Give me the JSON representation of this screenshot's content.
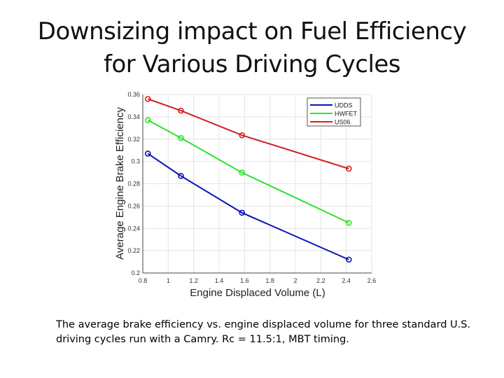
{
  "slide": {
    "title_line1": "Downsizing impact on Fuel Efficiency",
    "title_line2": "for Various Driving Cycles",
    "caption": "The average brake efficiency vs. engine displaced volume for three standard U.S. driving cycles run with a Camry. Rc = 11.5:1, MBT timing."
  },
  "chart_data": {
    "type": "line",
    "title": "",
    "xlabel": "Engine Displaced Volume (L)",
    "ylabel": "Average Engine Brake Efficiency",
    "xlim": [
      0.8,
      2.6
    ],
    "ylim": [
      0.2,
      0.36
    ],
    "xticks": [
      "0.8",
      "1",
      "1.2",
      "1.4",
      "1.6",
      "1.8",
      "2",
      "2.2",
      "2.4",
      "2.6"
    ],
    "yticks": [
      "0.2",
      "0.22",
      "0.24",
      "0.26",
      "0.28",
      "0.3",
      "0.32",
      "0.34",
      "0.36"
    ],
    "grid": true,
    "legend_position": "top-right",
    "x": [
      0.84,
      1.1,
      1.58,
      2.42
    ],
    "series": [
      {
        "name": "UDDS",
        "color": "#0a14b4",
        "values": [
          0.307,
          0.287,
          0.254,
          0.212
        ]
      },
      {
        "name": "HWFET",
        "color": "#2fe02f",
        "values": [
          0.337,
          0.321,
          0.29,
          0.245
        ]
      },
      {
        "name": "US06",
        "color": "#d42020",
        "values": [
          0.356,
          0.3455,
          0.3235,
          0.2935
        ]
      }
    ]
  }
}
